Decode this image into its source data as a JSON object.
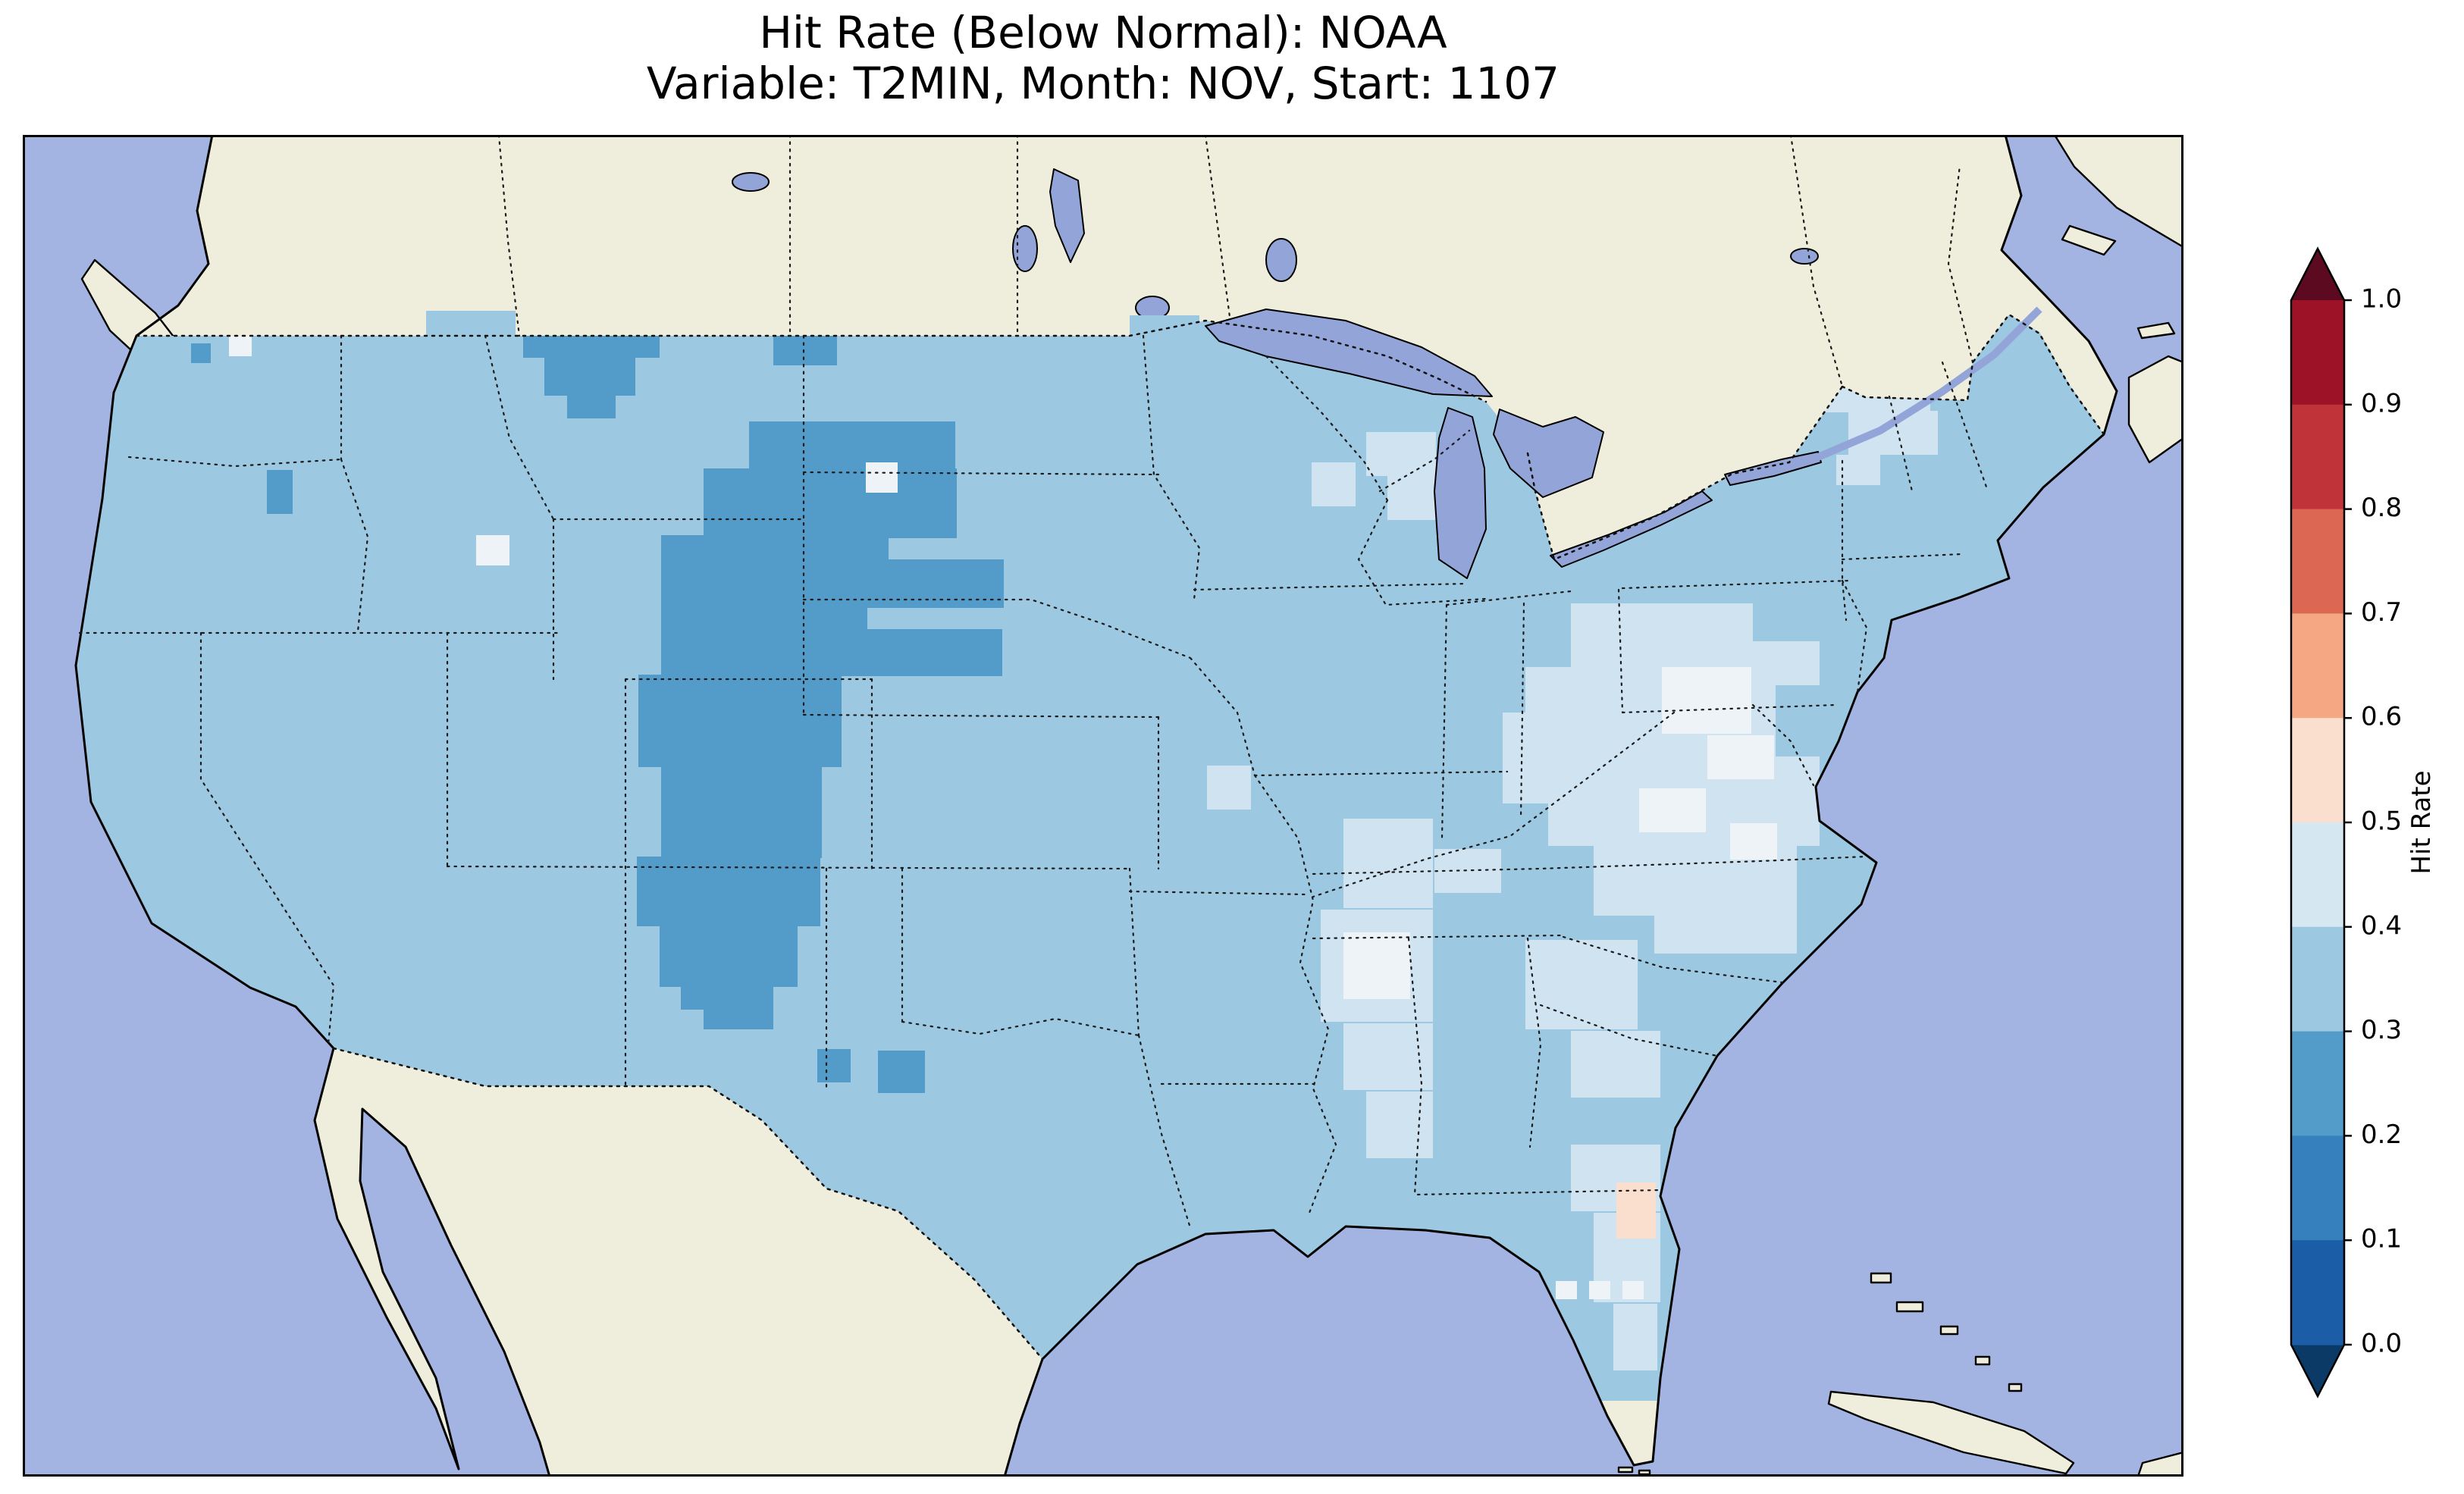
{
  "figure": {
    "title_line1": "Hit Rate (Below Normal): NOAA",
    "title_line2": "Variable: T2MIN, Month: NOV, Start: 1107"
  },
  "colorbar": {
    "label": "Hit Rate",
    "ticks": [
      "1.0",
      "0.9",
      "0.8",
      "0.7",
      "0.6",
      "0.5",
      "0.4",
      "0.3",
      "0.2",
      "0.1",
      "0.0"
    ],
    "extend": "both",
    "over_color": "#5c0a20",
    "under_color": "#0b3a67",
    "bands_top_to_bottom": [
      {
        "range": "0.9-1.0",
        "color": "#9e1228"
      },
      {
        "range": "0.8-0.9",
        "color": "#c03439"
      },
      {
        "range": "0.7-0.8",
        "color": "#dc6753"
      },
      {
        "range": "0.6-0.7",
        "color": "#f5a783"
      },
      {
        "range": "0.5-0.6",
        "color": "#fadece"
      },
      {
        "range": "0.4-0.5",
        "color": "#d5e7f1"
      },
      {
        "range": "0.3-0.4",
        "color": "#9cc9e1"
      },
      {
        "range": "0.2-0.3",
        "color": "#539bc9"
      },
      {
        "range": "0.1-0.2",
        "color": "#3580bd"
      },
      {
        "range": "0.0-0.1",
        "color": "#1b5ea7"
      }
    ]
  },
  "map": {
    "ocean_color": "#a3b4e3",
    "land_color": "#efeedd",
    "lake_color": "#93a4d9",
    "palette": {
      "base": {
        "color": "#9cc9e1",
        "hit_rate": "0.3-0.4"
      },
      "dark": {
        "color": "#539bc9",
        "hit_rate": "0.2-0.3"
      },
      "pale": {
        "color": "#cfe3f0",
        "hit_rate": "0.4-0.5"
      },
      "white": {
        "color": "#edf3f6",
        "hit_rate": "~0.5"
      },
      "pink": {
        "color": "#fadece",
        "hit_rate": "0.5-0.6"
      }
    },
    "cells": [
      {
        "c": "dark",
        "r": [
          690,
          180,
          120,
          55
        ]
      },
      {
        "c": "dark",
        "r": [
          660,
          232,
          180,
          62
        ]
      },
      {
        "c": "dark",
        "r": [
          688,
          292,
          120,
          52
        ]
      },
      {
        "c": "dark",
        "r": [
          718,
          342,
          64,
          32
        ]
      },
      {
        "c": "dark",
        "r": [
          990,
          252,
          84,
          52
        ]
      },
      {
        "c": "dark",
        "r": [
          222,
          275,
          26,
          26
        ]
      },
      {
        "c": "dark",
        "r": [
          322,
          442,
          34,
          58
        ]
      },
      {
        "c": "dark",
        "r": [
          958,
          378,
          272,
          64
        ]
      },
      {
        "c": "dark",
        "r": [
          898,
          440,
          334,
          92
        ]
      },
      {
        "c": "dark",
        "r": [
          842,
          528,
          300,
          96
        ]
      },
      {
        "c": "dark",
        "r": [
          1082,
          560,
          212,
          64
        ]
      },
      {
        "c": "dark",
        "r": [
          1112,
          652,
          180,
          62
        ]
      },
      {
        "c": "dark",
        "r": [
          842,
          622,
          272,
          92
        ]
      },
      {
        "c": "dark",
        "r": [
          812,
          712,
          268,
          122
        ]
      },
      {
        "c": "dark",
        "r": [
          842,
          832,
          212,
          122
        ]
      },
      {
        "c": "dark",
        "r": [
          810,
          952,
          242,
          92
        ]
      },
      {
        "c": "dark",
        "r": [
          840,
          1042,
          182,
          82
        ]
      },
      {
        "c": "dark",
        "r": [
          868,
          1108,
          64,
          46
        ]
      },
      {
        "c": "dark",
        "r": [
          898,
          1122,
          92,
          58
        ]
      },
      {
        "c": "dark",
        "r": [
          1128,
          1208,
          62,
          56
        ]
      },
      {
        "c": "dark",
        "r": [
          1048,
          1206,
          44,
          44
        ]
      },
      {
        "c": "pale",
        "r": [
          2352,
          248,
          152,
          58
        ]
      },
      {
        "c": "pale",
        "r": [
          2330,
          306,
          186,
          60
        ]
      },
      {
        "c": "pale",
        "r": [
          2408,
          364,
          118,
          58
        ]
      },
      {
        "c": "pale",
        "r": [
          2392,
          422,
          58,
          40
        ]
      },
      {
        "c": "pale",
        "r": [
          1772,
          392,
          92,
          58
        ]
      },
      {
        "c": "pale",
        "r": [
          1800,
          450,
          92,
          58
        ]
      },
      {
        "c": "pale",
        "r": [
          1700,
          432,
          58,
          58
        ]
      },
      {
        "c": "pale",
        "r": [
          2042,
          618,
          240,
          92
        ]
      },
      {
        "c": "pale",
        "r": [
          1982,
          702,
          330,
          118
        ]
      },
      {
        "c": "pale",
        "r": [
          2012,
          820,
          358,
          118
        ]
      },
      {
        "c": "pale",
        "r": [
          2072,
          938,
          268,
          92
        ]
      },
      {
        "c": "pale",
        "r": [
          2152,
          1002,
          188,
          78
        ]
      },
      {
        "c": "pale",
        "r": [
          1952,
          762,
          88,
          120
        ]
      },
      {
        "c": "pale",
        "r": [
          2282,
          668,
          88,
          58
        ]
      },
      {
        "c": "pale",
        "r": [
          1742,
          902,
          118,
          118
        ]
      },
      {
        "c": "pale",
        "r": [
          1712,
          1022,
          148,
          148
        ]
      },
      {
        "c": "pale",
        "r": [
          1742,
          1172,
          118,
          88
        ]
      },
      {
        "c": "pale",
        "r": [
          1772,
          1262,
          88,
          88
        ]
      },
      {
        "c": "pale",
        "r": [
          1982,
          1062,
          148,
          118
        ]
      },
      {
        "c": "pale",
        "r": [
          2042,
          1182,
          118,
          88
        ]
      },
      {
        "c": "pale",
        "r": [
          2042,
          1332,
          118,
          88
        ]
      },
      {
        "c": "pale",
        "r": [
          2072,
          1422,
          88,
          118
        ]
      },
      {
        "c": "pale",
        "r": [
          2098,
          1542,
          58,
          88
        ]
      },
      {
        "c": "pale",
        "r": [
          1862,
          942,
          88,
          58
        ]
      },
      {
        "c": "pale",
        "r": [
          1562,
          832,
          58,
          58
        ]
      },
      {
        "c": "white",
        "r": [
          2162,
          702,
          118,
          88
        ]
      },
      {
        "c": "white",
        "r": [
          2222,
          792,
          88,
          58
        ]
      },
      {
        "c": "white",
        "r": [
          2132,
          862,
          88,
          58
        ]
      },
      {
        "c": "white",
        "r": [
          2252,
          908,
          62,
          48
        ]
      },
      {
        "c": "white",
        "r": [
          1742,
          1052,
          88,
          88
        ]
      },
      {
        "c": "white",
        "r": [
          598,
          528,
          44,
          40
        ]
      },
      {
        "c": "white",
        "r": [
          272,
          262,
          30,
          30
        ]
      },
      {
        "c": "white",
        "r": [
          1112,
          432,
          42,
          40
        ]
      },
      {
        "c": "pink",
        "r": [
          2102,
          1382,
          52,
          74
        ]
      },
      {
        "c": "white",
        "r": [
          2022,
          1512,
          28,
          24
        ],
        "u": 1
      },
      {
        "c": "white",
        "r": [
          2066,
          1512,
          28,
          24
        ],
        "u": 1
      },
      {
        "c": "white",
        "r": [
          2110,
          1512,
          28,
          24
        ],
        "u": 1
      },
      {
        "c": "base",
        "r": [
          532,
          232,
          118,
          34
        ],
        "u": 1
      },
      {
        "c": "base",
        "r": [
          1460,
          238,
          92,
          28
        ],
        "u": 1
      }
    ]
  },
  "chart_data": {
    "type": "heatmap",
    "title": "Hit Rate (Below Normal): NOAA",
    "subtitle": "Variable: T2MIN, Month: NOV, Start: 1107",
    "colorbar_label": "Hit Rate",
    "colorbar_ticks": [
      1.0,
      0.9,
      0.8,
      0.7,
      0.6,
      0.5,
      0.4,
      0.3,
      0.2,
      0.1,
      0.0
    ],
    "colorbar_range": [
      0.0,
      1.0
    ],
    "colormap": "RdBu_r, discrete 0.1 bins, extended arrows both ends (red = high hit rate, blue = low)",
    "geography": "Gridded hit-rate field over the contiguous United States; Canada and Mexico shown as beige land, oceans and Great Lakes in periwinkle blue, dotted state and national borders",
    "regions": [
      {
        "region": "Most of CONUS (West Coast, Northern Plains, Midwest, Texas)",
        "hit_rate": [
          0.3,
          0.4
        ]
      },
      {
        "region": "High Plains and Southern Rockies (E Wyoming, Colorado, W Kansas/Nebraska, E New Mexico, W Texas)",
        "hit_rate": [
          0.2,
          0.3
        ]
      },
      {
        "region": "Central Montana patch",
        "hit_rate": [
          0.2,
          0.3
        ]
      },
      {
        "region": "Western North Dakota small patch",
        "hit_rate": [
          0.2,
          0.3
        ]
      },
      {
        "region": "Southeast and Mid-Atlantic (Virginia, Carolinas, Georgia, Alabama, Mississippi)",
        "hit_rate": [
          0.4,
          0.5
        ]
      },
      {
        "region": "Scattered cells Virginia/North Carolina and Mississippi",
        "hit_rate": [
          0.45,
          0.55
        ]
      },
      {
        "region": "Northern New England and Upper Michigan",
        "hit_rate": [
          0.4,
          0.5
        ]
      },
      {
        "region": "East-central Florida single cell",
        "hit_rate": [
          0.5,
          0.6
        ]
      }
    ]
  }
}
